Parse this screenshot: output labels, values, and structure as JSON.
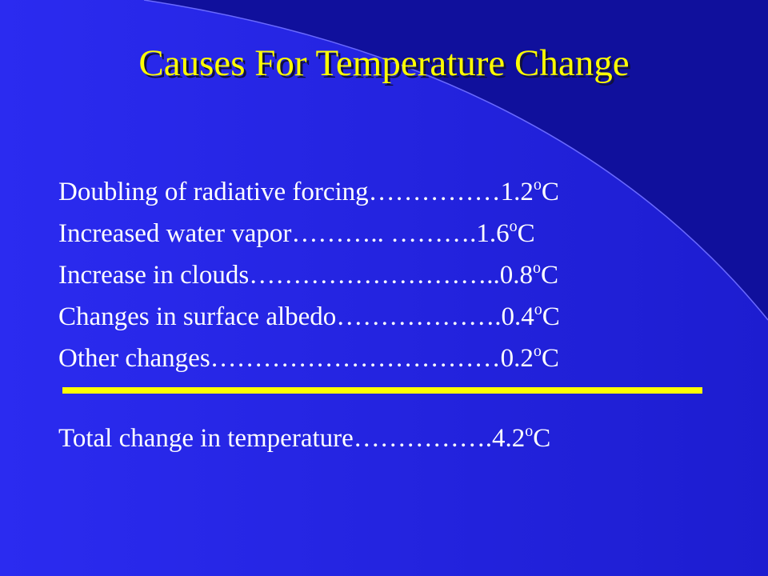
{
  "header": {
    "title": "Causes For Temperature Change"
  },
  "items": [
    {
      "label": "Doubling of radiative forcing",
      "leader": "……………",
      "value": "1.2",
      "degree": "o",
      "unit": "C"
    },
    {
      "label": "Increased water vapor",
      "leader": "……….. ……….",
      "value": "1.6",
      "degree": "o",
      "unit": "C"
    },
    {
      "label": "Increase in clouds",
      "leader": "………………………..",
      "value": "0.8",
      "degree": "o",
      "unit": "C"
    },
    {
      "label": "Changes in surface albedo",
      "leader": "……………….",
      "value": "0.4",
      "degree": "o",
      "unit": "C"
    },
    {
      "label": "Other changes",
      "leader": "……………………………",
      "value": "0.2",
      "degree": "o",
      "unit": "C"
    }
  ],
  "total": {
    "label": "Total change in temperature",
    "leader": "…………….",
    "value": "4.2",
    "degree": "o",
    "unit": "C"
  }
}
